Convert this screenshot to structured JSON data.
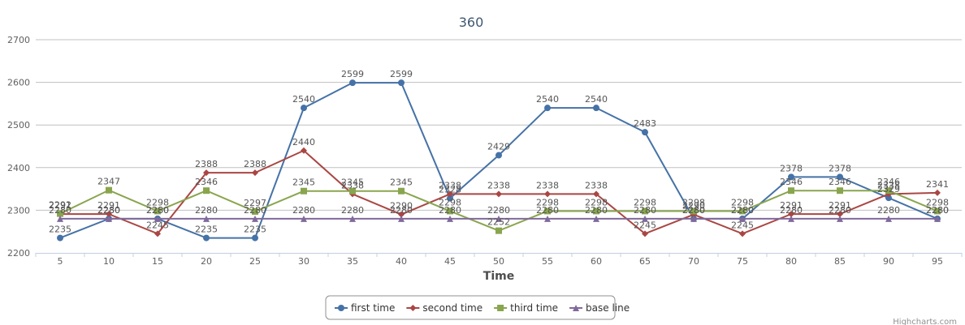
{
  "chart_data": {
    "type": "line",
    "title": "360",
    "xlabel": "Time",
    "ylabel": "",
    "x": [
      5,
      10,
      15,
      20,
      25,
      30,
      35,
      40,
      45,
      50,
      55,
      60,
      65,
      70,
      75,
      80,
      85,
      90,
      95
    ],
    "ylim": [
      2200,
      2700
    ],
    "yticks": [
      2200,
      2300,
      2400,
      2500,
      2600,
      2700
    ],
    "grid": true,
    "legend_position": "bottom",
    "series": [
      {
        "name": "first time",
        "color": "#4572a7",
        "marker": "circle",
        "values": [
          2235,
          2280,
          2280,
          2235,
          2235,
          2540,
          2599,
          2599,
          2328,
          2429,
          2540,
          2540,
          2483,
          2280,
          2280,
          2378,
          2378,
          2329,
          2280
        ]
      },
      {
        "name": "second time",
        "color": "#aa4643",
        "marker": "diamond",
        "values": [
          2291,
          2291,
          2245,
          2388,
          2388,
          2440,
          2338,
          2290,
          2338,
          2338,
          2338,
          2338,
          2245,
          2290,
          2245,
          2291,
          2291,
          2338,
          2341
        ]
      },
      {
        "name": "third time",
        "color": "#89a54e",
        "marker": "square",
        "values": [
          2292,
          2347,
          2298,
          2346,
          2297,
          2345,
          2345,
          2345,
          2298,
          2252,
          2298,
          2298,
          2298,
          2298,
          2298,
          2346,
          2346,
          2346,
          2298
        ]
      },
      {
        "name": "base line",
        "color": "#80699b",
        "marker": "triangle",
        "values": [
          2280,
          2280,
          2280,
          2280,
          2280,
          2280,
          2280,
          2280,
          2280,
          2280,
          2280,
          2280,
          2280,
          2280,
          2280,
          2280,
          2280,
          2280,
          2280
        ]
      }
    ]
  },
  "credits": "Highcharts.com"
}
